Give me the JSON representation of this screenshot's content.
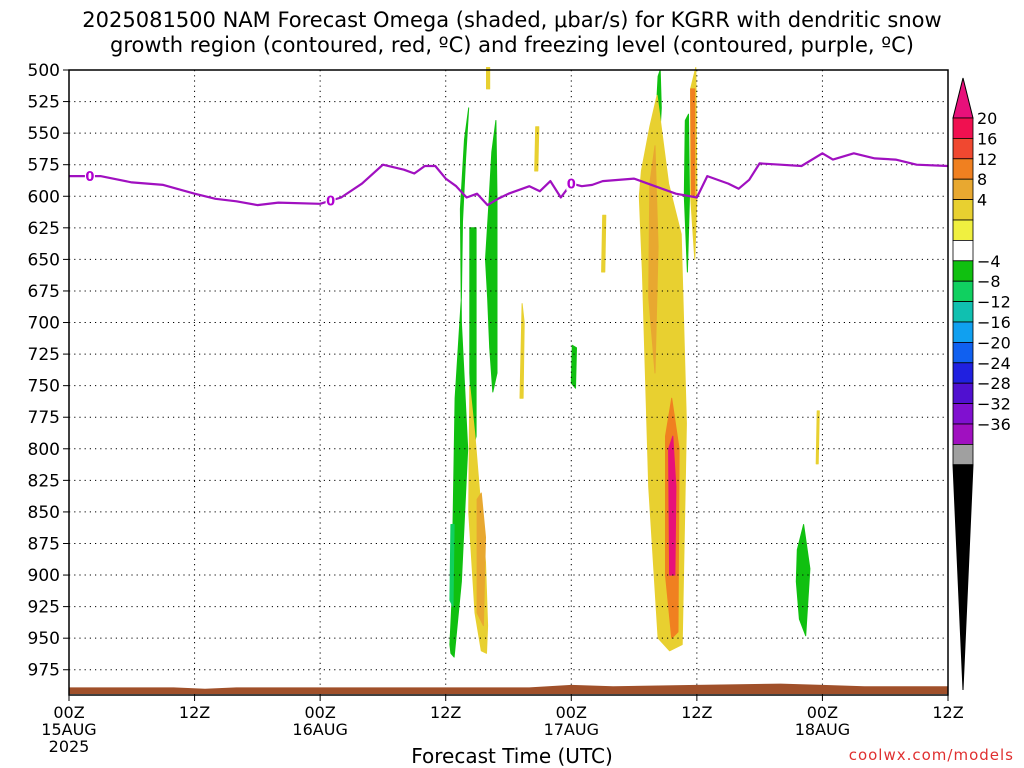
{
  "title_lines": [
    "2025081500 NAM Forecast Omega (shaded, μbar/s) for KGRR with dendritic snow",
    "growth region (contoured, red, ºC) and freezing level (contoured, purple, ºC)"
  ],
  "credit": "coolwx.com/models",
  "chart_data": {
    "type": "heatmap",
    "xlabel": "Forecast Time (UTC)",
    "ylabel": "",
    "x_unit": "hours since 2025-08-15 00Z",
    "xlim": [
      0,
      84
    ],
    "ylim": [
      500,
      995
    ],
    "y_inverted": true,
    "y_ticks": [
      500,
      525,
      550,
      575,
      600,
      625,
      650,
      675,
      700,
      725,
      750,
      775,
      800,
      825,
      850,
      875,
      900,
      925,
      950,
      975
    ],
    "x_ticks": [
      {
        "x": 0,
        "lines": [
          "00Z",
          "15AUG",
          "2025"
        ]
      },
      {
        "x": 12,
        "lines": [
          "12Z"
        ]
      },
      {
        "x": 24,
        "lines": [
          "00Z",
          "16AUG"
        ]
      },
      {
        "x": 36,
        "lines": [
          "12Z"
        ]
      },
      {
        "x": 48,
        "lines": [
          "00Z",
          "17AUG"
        ]
      },
      {
        "x": 60,
        "lines": [
          "12Z"
        ]
      },
      {
        "x": 72,
        "lines": [
          "00Z",
          "18AUG"
        ]
      },
      {
        "x": 84,
        "lines": [
          "12Z"
        ]
      }
    ],
    "grid": true,
    "colorbar": {
      "labels": [
        "20",
        "16",
        "12",
        "8",
        "4",
        "−4",
        "−8",
        "−12",
        "−16",
        "−20",
        "−24",
        "−28",
        "−32",
        "−36"
      ],
      "colors_top_to_bottom": [
        "#f01050",
        "#f04830",
        "#f08020",
        "#e8a830",
        "#e8d030",
        "#f0f040",
        "#ffffff",
        "#10c010",
        "#10d060",
        "#10c0b0",
        "#10a0f0",
        "#1060f0",
        "#2020e0",
        "#5010d0",
        "#8010d0",
        "#a010c0",
        "#a0a0a0"
      ],
      "top_arrow_color": "#e8107a",
      "bottom_arrow_color": "#000000"
    },
    "freezing_level": {
      "color": "#a010c0",
      "contour_label": "0",
      "label_positions_x": [
        2,
        25,
        48
      ],
      "points": [
        [
          0,
          584
        ],
        [
          3,
          584
        ],
        [
          6,
          589
        ],
        [
          9,
          591
        ],
        [
          12,
          598
        ],
        [
          14,
          602
        ],
        [
          16,
          604
        ],
        [
          18,
          607
        ],
        [
          20,
          605
        ],
        [
          24,
          606
        ],
        [
          26,
          601
        ],
        [
          28,
          590
        ],
        [
          30,
          575
        ],
        [
          32,
          579
        ],
        [
          33,
          582
        ],
        [
          34,
          576
        ],
        [
          35,
          576
        ],
        [
          36,
          586
        ],
        [
          37,
          592
        ],
        [
          38,
          601
        ],
        [
          39,
          598
        ],
        [
          40,
          607
        ],
        [
          41,
          602
        ],
        [
          42,
          598
        ],
        [
          44,
          592
        ],
        [
          45,
          596
        ],
        [
          46,
          588
        ],
        [
          47,
          601
        ],
        [
          48,
          590
        ],
        [
          49,
          592
        ],
        [
          50,
          591
        ],
        [
          51,
          588
        ],
        [
          54,
          586
        ],
        [
          56,
          592
        ],
        [
          58,
          598
        ],
        [
          60,
          601
        ],
        [
          61,
          584
        ],
        [
          63,
          590
        ],
        [
          64,
          594
        ],
        [
          65,
          587
        ],
        [
          66,
          574
        ],
        [
          68,
          575
        ],
        [
          70,
          576
        ],
        [
          72,
          566
        ],
        [
          73,
          571
        ],
        [
          75,
          566
        ],
        [
          77,
          570
        ],
        [
          79,
          571
        ],
        [
          81,
          575
        ],
        [
          84,
          576
        ]
      ]
    },
    "omega_regions": [
      {
        "name": "green-column-a",
        "value": -6,
        "color": "#10c010",
        "x": [
          36.8,
          37.5,
          38.1,
          37.5,
          37.4,
          37.8,
          38.2,
          37.9,
          37.6,
          37.5,
          36.9,
          36.7,
          36.6,
          36.4,
          36.5
        ],
        "y": [
          965,
          905,
          800,
          700,
          610,
          555,
          530,
          570,
          620,
          680,
          760,
          860,
          920,
          955,
          962
        ]
      },
      {
        "name": "green-column-b",
        "value": -6,
        "color": "#10c010",
        "x": [
          38.3,
          38.9,
          38.9,
          38.6,
          38.3
        ],
        "y": [
          625,
          625,
          790,
          800,
          740
        ]
      },
      {
        "name": "green-column-c",
        "value": -6,
        "color": "#10c010",
        "x": [
          40.1,
          40.4,
          40.8,
          40.9,
          40.9,
          40.5,
          40.2,
          40.0,
          39.8
        ],
        "y": [
          610,
          565,
          540,
          600,
          740,
          755,
          720,
          680,
          650
        ]
      },
      {
        "name": "green-strip-d",
        "value": -6,
        "color": "#10c010",
        "x": [
          56.3,
          56.5,
          56.6,
          56.4,
          56.2
        ],
        "y": [
          505,
          500,
          530,
          560,
          520
        ]
      },
      {
        "name": "green-strip-e",
        "value": -6,
        "color": "#10c010",
        "x": [
          58.9,
          59.2,
          59.3,
          59.1,
          58.8
        ],
        "y": [
          540,
          535,
          600,
          660,
          600
        ]
      },
      {
        "name": "green-patch-f",
        "value": -6,
        "color": "#10c010",
        "x": [
          48.1,
          48.5,
          48.4,
          48.0
        ],
        "y": [
          718,
          720,
          752,
          748
        ]
      },
      {
        "name": "green-blob-g",
        "value": -6,
        "color": "#10c010",
        "x": [
          69.6,
          70.2,
          70.8,
          70.4,
          69.8,
          69.5
        ],
        "y": [
          880,
          860,
          895,
          948,
          935,
          905
        ]
      },
      {
        "name": "teal-sliver",
        "value": -9,
        "color": "#10d060",
        "x": [
          36.5,
          36.8,
          36.7,
          36.4
        ],
        "y": [
          860,
          860,
          925,
          920
        ]
      },
      {
        "name": "yellow-west",
        "value": 6,
        "color": "#e8d030",
        "x": [
          38.3,
          38.8,
          39.3,
          39.8,
          40.0,
          39.9,
          39.4,
          38.8,
          38.2
        ],
        "y": [
          750,
          790,
          840,
          890,
          940,
          962,
          960,
          930,
          850
        ]
      },
      {
        "name": "yellow-west-top",
        "value": 6,
        "color": "#e8d030",
        "x": [
          39.9,
          40.2,
          40.2,
          39.9
        ],
        "y": [
          498,
          498,
          515,
          515
        ]
      },
      {
        "name": "yellow-mid",
        "value": 6,
        "color": "#e8d030",
        "x": [
          43.3,
          43.5,
          43.4,
          43.1
        ],
        "y": [
          685,
          700,
          760,
          760
        ]
      },
      {
        "name": "yellow-right-tall",
        "value": 6,
        "color": "#e8d030",
        "x": [
          54.7,
          55.5,
          56.2,
          57.3,
          58.5,
          59.0,
          58.6,
          57.4,
          56.3,
          55.4,
          54.8,
          54.5
        ],
        "y": [
          580,
          545,
          520,
          590,
          630,
          780,
          955,
          960,
          950,
          830,
          660,
          600
        ]
      },
      {
        "name": "yellow-right-col",
        "value": 6,
        "color": "#e8d030",
        "x": [
          59.4,
          59.9,
          60.0,
          59.8,
          59.4
        ],
        "y": [
          515,
          498,
          600,
          650,
          600
        ]
      },
      {
        "name": "yellow-small-a",
        "value": 6,
        "color": "#e8d030",
        "x": [
          44.6,
          44.9,
          44.8,
          44.5
        ],
        "y": [
          545,
          545,
          580,
          580
        ]
      },
      {
        "name": "yellow-small-b",
        "value": 6,
        "color": "#e8d030",
        "x": [
          51.0,
          51.3,
          51.2,
          50.9
        ],
        "y": [
          615,
          615,
          660,
          660
        ]
      },
      {
        "name": "yellow-small-c",
        "value": 6,
        "color": "#e8d030",
        "x": [
          71.5,
          71.7,
          71.6,
          71.4
        ],
        "y": [
          770,
          770,
          812,
          812
        ]
      },
      {
        "name": "orange-west",
        "value": 10,
        "color": "#e8a830",
        "x": [
          39.0,
          39.4,
          39.8,
          39.6,
          39.0
        ],
        "y": [
          840,
          835,
          870,
          940,
          930
        ]
      },
      {
        "name": "orange-right-tall",
        "value": 10,
        "color": "#e8a830",
        "x": [
          55.5,
          56.0,
          56.3,
          56.0,
          55.4
        ],
        "y": [
          590,
          560,
          640,
          740,
          680
        ]
      },
      {
        "name": "orange-right-low",
        "value": 12,
        "color": "#f08020",
        "x": [
          57.0,
          57.6,
          58.3,
          58.2,
          57.6,
          57.0
        ],
        "y": [
          790,
          760,
          800,
          945,
          950,
          900
        ]
      },
      {
        "name": "orange-right-col",
        "value": 12,
        "color": "#f08020",
        "x": [
          59.4,
          59.8,
          59.8,
          59.5
        ],
        "y": [
          515,
          515,
          600,
          600
        ]
      },
      {
        "name": "magenta-core",
        "value": 20,
        "color": "#e8107a",
        "x": [
          57.3,
          57.7,
          58.0,
          57.9,
          57.4
        ],
        "y": [
          800,
          790,
          830,
          900,
          900
        ]
      }
    ],
    "ground": {
      "color": "#a0502a",
      "points": [
        [
          0,
          989
        ],
        [
          10,
          989
        ],
        [
          13,
          990
        ],
        [
          16,
          989
        ],
        [
          44,
          989
        ],
        [
          48,
          987
        ],
        [
          52,
          988
        ],
        [
          60,
          987
        ],
        [
          68,
          986
        ],
        [
          72,
          987
        ],
        [
          76,
          988
        ],
        [
          84,
          988
        ]
      ]
    }
  }
}
